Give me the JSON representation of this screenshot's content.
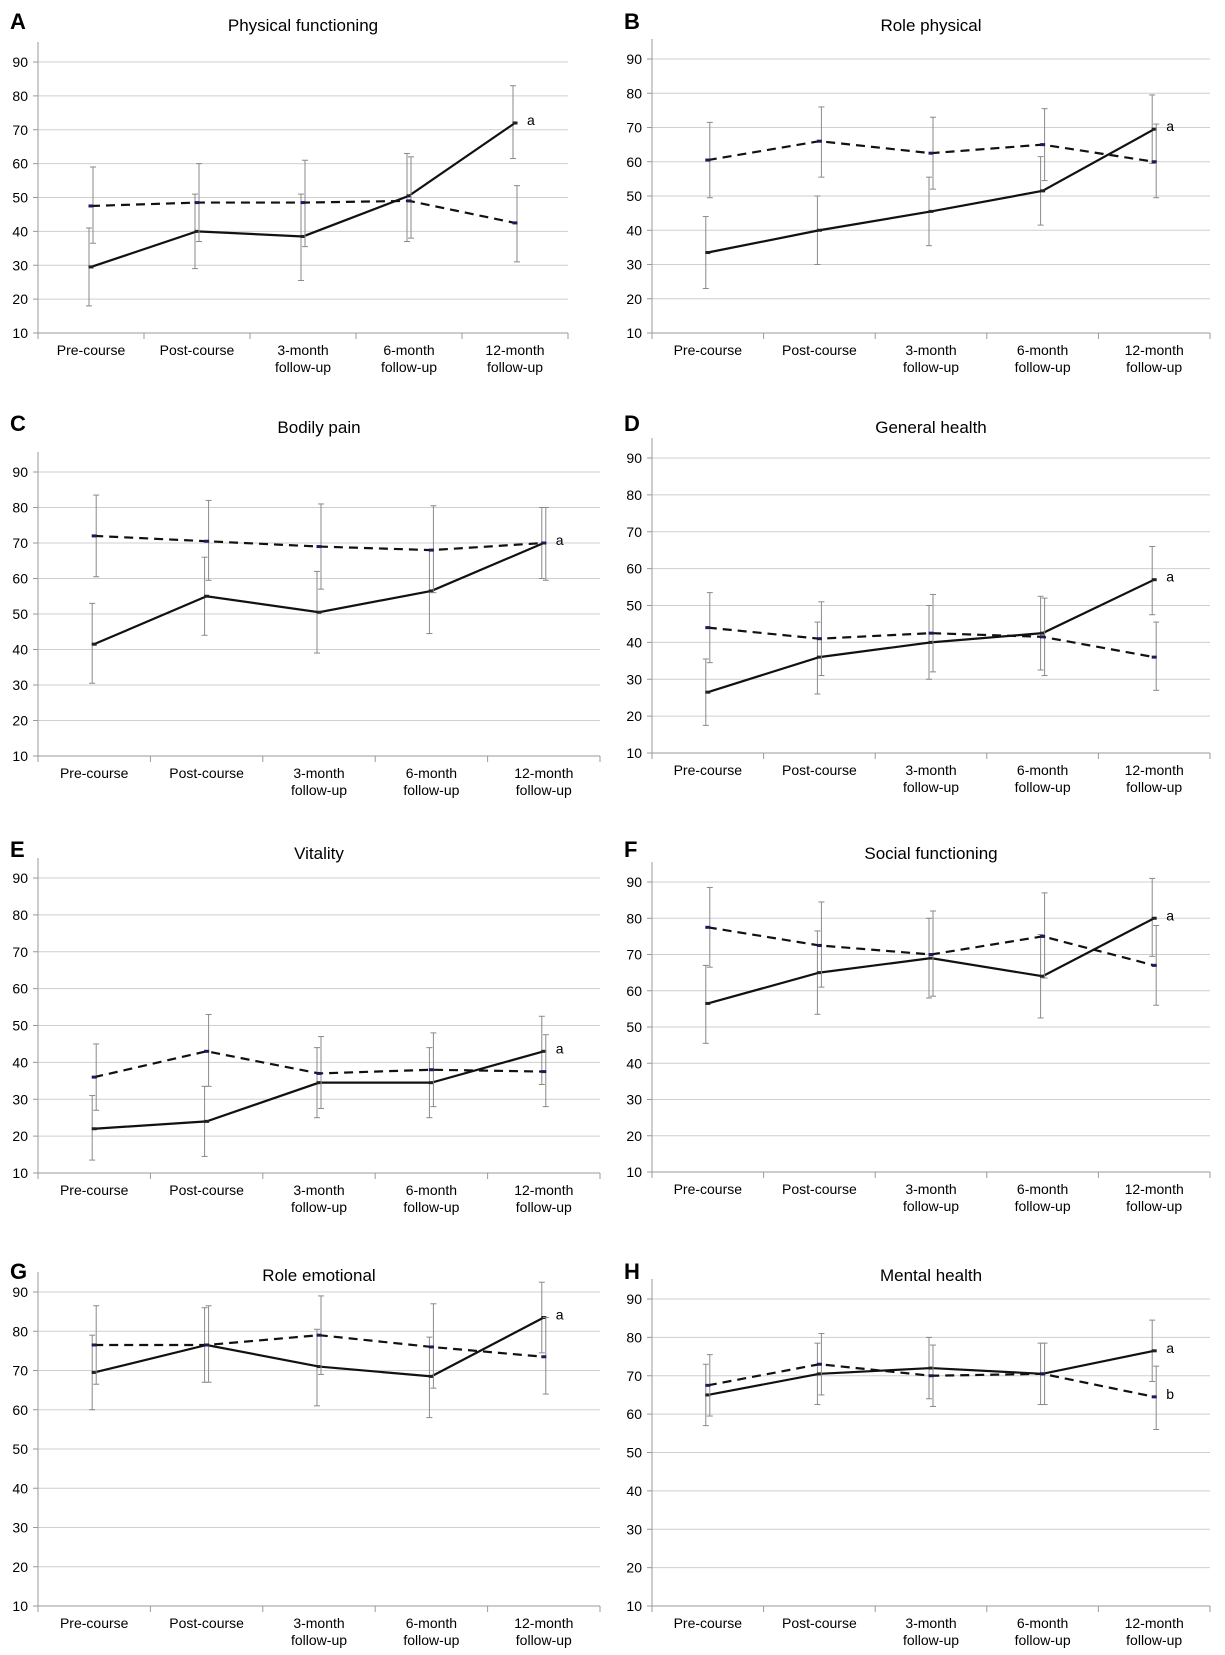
{
  "figure": {
    "x_categories": [
      "Pre-course",
      "Post-course",
      "3-month follow-up",
      "6-month follow-up",
      "12-month follow-up"
    ],
    "x_tick_lines": [
      [
        "Pre-course"
      ],
      [
        "Post-course"
      ],
      [
        "3-month",
        "follow-up"
      ],
      [
        "6-month",
        "follow-up"
      ],
      [
        "12-month",
        "follow-up"
      ]
    ],
    "y_ticks": [
      10,
      20,
      30,
      40,
      50,
      60,
      70,
      80,
      90
    ],
    "line_color": "#111111",
    "errorbar_color": "#8a8a8a",
    "grid_color": "#cfcfcf"
  },
  "chart_data": [
    {
      "panel": "A",
      "title": "Physical functioning",
      "type": "line",
      "categories": [
        "Pre-course",
        "Post-course",
        "3-month follow-up",
        "6-month follow-up",
        "12-month follow-up"
      ],
      "ylim": [
        10,
        90
      ],
      "y_ticks": [
        10,
        20,
        30,
        40,
        50,
        60,
        70,
        80,
        90
      ],
      "grid": true,
      "series": [
        {
          "style": "solid",
          "values": [
            29.5,
            40,
            38.5,
            50.5,
            72
          ],
          "error_low": [
            18,
            29,
            25.5,
            37,
            61.5
          ],
          "error_high": [
            41,
            51,
            51,
            63,
            83
          ],
          "end_label": "a"
        },
        {
          "style": "dashed",
          "values": [
            47.5,
            48.5,
            48.5,
            49,
            42.5
          ],
          "error_low": [
            36.5,
            37,
            35.5,
            38,
            31
          ],
          "error_high": [
            59,
            60,
            61,
            62,
            53.5
          ]
        }
      ]
    },
    {
      "panel": "B",
      "title": "Role physical",
      "type": "line",
      "categories": [
        "Pre-course",
        "Post-course",
        "3-month follow-up",
        "6-month follow-up",
        "12-month follow-up"
      ],
      "ylim": [
        10,
        90
      ],
      "y_ticks": [
        10,
        20,
        30,
        40,
        50,
        60,
        70,
        80,
        90
      ],
      "grid": true,
      "series": [
        {
          "style": "solid",
          "values": [
            33.5,
            40,
            45.5,
            51.5,
            69.5
          ],
          "error_low": [
            23,
            30,
            35.5,
            41.5,
            59.5
          ],
          "error_high": [
            44,
            50,
            55.5,
            61.5,
            79.5
          ],
          "end_label": "a"
        },
        {
          "style": "dashed",
          "values": [
            60.5,
            66,
            62.5,
            65,
            60
          ],
          "error_low": [
            49.5,
            55.5,
            52,
            54.5,
            49.5
          ],
          "error_high": [
            71.5,
            76,
            73,
            75.5,
            71
          ]
        }
      ]
    },
    {
      "panel": "C",
      "title": "Bodily pain",
      "type": "line",
      "categories": [
        "Pre-course",
        "Post-course",
        "3-month follow-up",
        "6-month follow-up",
        "12-month follow-up"
      ],
      "ylim": [
        10,
        90
      ],
      "y_ticks": [
        10,
        20,
        30,
        40,
        50,
        60,
        70,
        80,
        90
      ],
      "grid": true,
      "series": [
        {
          "style": "solid",
          "values": [
            41.5,
            55,
            50.5,
            56.5,
            70
          ],
          "error_low": [
            30.5,
            44,
            39,
            44.5,
            60
          ],
          "error_high": [
            53,
            66,
            62,
            68,
            80
          ],
          "end_label": "a"
        },
        {
          "style": "dashed",
          "values": [
            72,
            70.5,
            69,
            68,
            70
          ],
          "error_low": [
            60.5,
            59.5,
            57,
            56,
            59.5
          ],
          "error_high": [
            83.5,
            82,
            81,
            80.5,
            80
          ]
        }
      ]
    },
    {
      "panel": "D",
      "title": "General health",
      "type": "line",
      "categories": [
        "Pre-course",
        "Post-course",
        "3-month follow-up",
        "6-month follow-up",
        "12-month follow-up"
      ],
      "ylim": [
        10,
        90
      ],
      "y_ticks": [
        10,
        20,
        30,
        40,
        50,
        60,
        70,
        80,
        90
      ],
      "grid": true,
      "series": [
        {
          "style": "solid",
          "values": [
            26.5,
            36,
            40,
            42.5,
            57
          ],
          "error_low": [
            17.5,
            26,
            30,
            32.5,
            47.5
          ],
          "error_high": [
            35.5,
            45.5,
            50,
            52.5,
            66
          ],
          "end_label": "a"
        },
        {
          "style": "dashed",
          "values": [
            44,
            41,
            42.5,
            41.5,
            36
          ],
          "error_low": [
            34.5,
            31,
            32,
            31,
            27
          ],
          "error_high": [
            53.5,
            51,
            53,
            52,
            45.5
          ]
        }
      ]
    },
    {
      "panel": "E",
      "title": "Vitality",
      "type": "line",
      "categories": [
        "Pre-course",
        "Post-course",
        "3-month follow-up",
        "6-month follow-up",
        "12-month follow-up"
      ],
      "ylim": [
        10,
        90
      ],
      "y_ticks": [
        10,
        20,
        30,
        40,
        50,
        60,
        70,
        80,
        90
      ],
      "grid": true,
      "series": [
        {
          "style": "solid",
          "values": [
            22,
            24,
            34.5,
            34.5,
            43
          ],
          "error_low": [
            13.5,
            14.5,
            25,
            25,
            34
          ],
          "error_high": [
            31,
            33.5,
            44,
            44,
            52.5
          ],
          "end_label": "a"
        },
        {
          "style": "dashed",
          "values": [
            36,
            43,
            37,
            38,
            37.5
          ],
          "error_low": [
            27,
            33.5,
            27.5,
            28,
            28
          ],
          "error_high": [
            45,
            53,
            47,
            48,
            47.5
          ]
        }
      ]
    },
    {
      "panel": "F",
      "title": "Social functioning",
      "type": "line",
      "categories": [
        "Pre-course",
        "Post-course",
        "3-month follow-up",
        "6-month follow-up",
        "12-month follow-up"
      ],
      "ylim": [
        10,
        90
      ],
      "y_ticks": [
        10,
        20,
        30,
        40,
        50,
        60,
        70,
        80,
        90
      ],
      "grid": true,
      "series": [
        {
          "style": "solid",
          "values": [
            56.5,
            65,
            69,
            64,
            80
          ],
          "error_low": [
            45.5,
            53.5,
            58,
            52.5,
            69.5
          ],
          "error_high": [
            67,
            76.5,
            80,
            75.5,
            91
          ],
          "end_label": "a"
        },
        {
          "style": "dashed",
          "values": [
            77.5,
            72.5,
            70,
            75,
            67
          ],
          "error_low": [
            66.5,
            61,
            58.5,
            63.5,
            56
          ],
          "error_high": [
            88.5,
            84.5,
            82,
            87,
            78
          ]
        }
      ]
    },
    {
      "panel": "G",
      "title": "Role emotional",
      "type": "line",
      "categories": [
        "Pre-course",
        "Post-course",
        "3-month follow-up",
        "6-month follow-up",
        "12-month follow-up"
      ],
      "ylim": [
        10,
        90
      ],
      "y_ticks": [
        10,
        20,
        30,
        40,
        50,
        60,
        70,
        80,
        90
      ],
      "grid": true,
      "series": [
        {
          "style": "solid",
          "values": [
            69.5,
            76.5,
            71,
            68.5,
            83.5
          ],
          "error_low": [
            60,
            67,
            61,
            58,
            74.5
          ],
          "error_high": [
            79,
            86,
            80.5,
            78.5,
            92.5
          ],
          "end_label": "a"
        },
        {
          "style": "dashed",
          "values": [
            76.5,
            76.5,
            79,
            76,
            73.5
          ],
          "error_low": [
            66.5,
            67,
            69,
            65.5,
            64
          ],
          "error_high": [
            86.5,
            86.5,
            89,
            87,
            83.5
          ]
        }
      ]
    },
    {
      "panel": "H",
      "title": "Mental health",
      "type": "line",
      "categories": [
        "Pre-course",
        "Post-course",
        "3-month follow-up",
        "6-month follow-up",
        "12-month follow-up"
      ],
      "ylim": [
        10,
        90
      ],
      "y_ticks": [
        10,
        20,
        30,
        40,
        50,
        60,
        70,
        80,
        90
      ],
      "grid": true,
      "series": [
        {
          "style": "solid",
          "values": [
            65,
            70.5,
            72,
            70.5,
            76.5
          ],
          "error_low": [
            57,
            62.5,
            64,
            62.5,
            68.5
          ],
          "error_high": [
            73,
            78.5,
            80,
            78.5,
            84.5
          ],
          "end_label": "a"
        },
        {
          "style": "dashed",
          "values": [
            67.5,
            73,
            70,
            70.5,
            64.5
          ],
          "error_low": [
            59.5,
            65,
            62,
            62.5,
            56
          ],
          "error_high": [
            75.5,
            81,
            78,
            78.5,
            72.5
          ],
          "end_label": "b"
        }
      ]
    }
  ]
}
